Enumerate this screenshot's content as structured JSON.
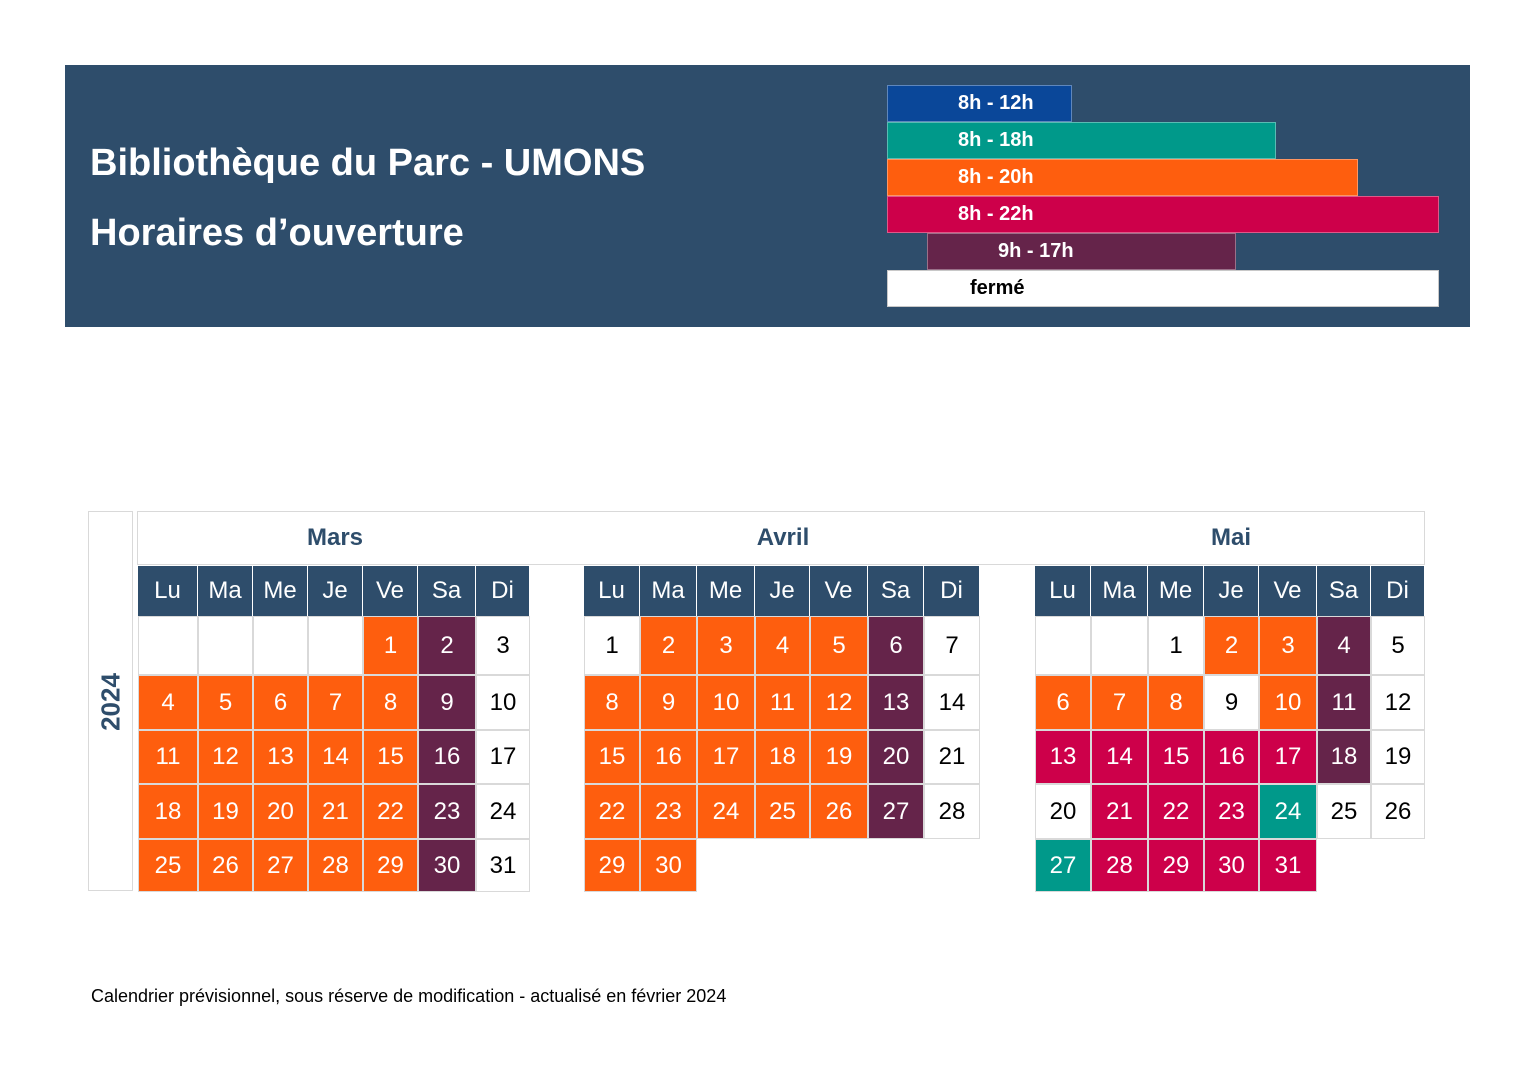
{
  "header": {
    "title": "Bibliothèque du Parc - UMONS",
    "subtitle": "Horaires d’ouverture"
  },
  "colors": {
    "header_bg": "#2e4d6b",
    "8h-12h": "#0a4799",
    "8h-18h": "#00998a",
    "8h-20h": "#fe5e0e",
    "8h-22h": "#cd004a",
    "9h-17h": "#65244a",
    "ferme": "#ffffff"
  },
  "legend": [
    {
      "key": "8h-12h",
      "label": "8h - 12h",
      "color": "#0a4799"
    },
    {
      "key": "8h-18h",
      "label": "8h - 18h",
      "color": "#00998a"
    },
    {
      "key": "8h-20h",
      "label": "8h - 20h",
      "color": "#fe5e0e"
    },
    {
      "key": "8h-22h",
      "label": "8h - 22h",
      "color": "#cd004a"
    },
    {
      "key": "9h-17h",
      "label": "9h - 17h",
      "color": "#65244a"
    },
    {
      "key": "ferme",
      "label": "fermé",
      "color": "#ffffff"
    }
  ],
  "year": "2024",
  "weekdays": [
    "Lu",
    "Ma",
    "Me",
    "Je",
    "Ve",
    "Sa",
    "Di"
  ],
  "months": [
    {
      "name": "Mars",
      "start_weekday": 4,
      "days": [
        "8h-20h",
        "9h-17h",
        "ferme",
        "8h-20h",
        "8h-20h",
        "8h-20h",
        "8h-20h",
        "8h-20h",
        "9h-17h",
        "ferme",
        "8h-20h",
        "8h-20h",
        "8h-20h",
        "8h-20h",
        "8h-20h",
        "9h-17h",
        "ferme",
        "8h-20h",
        "8h-20h",
        "8h-20h",
        "8h-20h",
        "8h-20h",
        "9h-17h",
        "ferme",
        "8h-20h",
        "8h-20h",
        "8h-20h",
        "8h-20h",
        "8h-20h",
        "9h-17h",
        "ferme"
      ]
    },
    {
      "name": "Avril",
      "start_weekday": 0,
      "days": [
        "ferme",
        "8h-20h",
        "8h-20h",
        "8h-20h",
        "8h-20h",
        "9h-17h",
        "ferme",
        "8h-20h",
        "8h-20h",
        "8h-20h",
        "8h-20h",
        "8h-20h",
        "9h-17h",
        "ferme",
        "8h-20h",
        "8h-20h",
        "8h-20h",
        "8h-20h",
        "8h-20h",
        "9h-17h",
        "ferme",
        "8h-20h",
        "8h-20h",
        "8h-20h",
        "8h-20h",
        "8h-20h",
        "9h-17h",
        "ferme",
        "8h-20h",
        "8h-20h"
      ]
    },
    {
      "name": "Mai",
      "start_weekday": 2,
      "days": [
        "ferme",
        "8h-20h",
        "8h-20h",
        "9h-17h",
        "ferme",
        "8h-20h",
        "8h-20h",
        "8h-20h",
        "ferme",
        "8h-20h",
        "9h-17h",
        "ferme",
        "8h-22h",
        "8h-22h",
        "8h-22h",
        "8h-22h",
        "8h-22h",
        "9h-17h",
        "ferme",
        "ferme",
        "8h-22h",
        "8h-22h",
        "8h-22h",
        "8h-18h",
        "ferme",
        "ferme",
        "8h-18h",
        "8h-22h",
        "8h-22h",
        "8h-22h",
        "8h-22h"
      ]
    }
  ],
  "footer": "Calendrier prévisionnel, sous réserve de modification - actualisé en février 2024"
}
